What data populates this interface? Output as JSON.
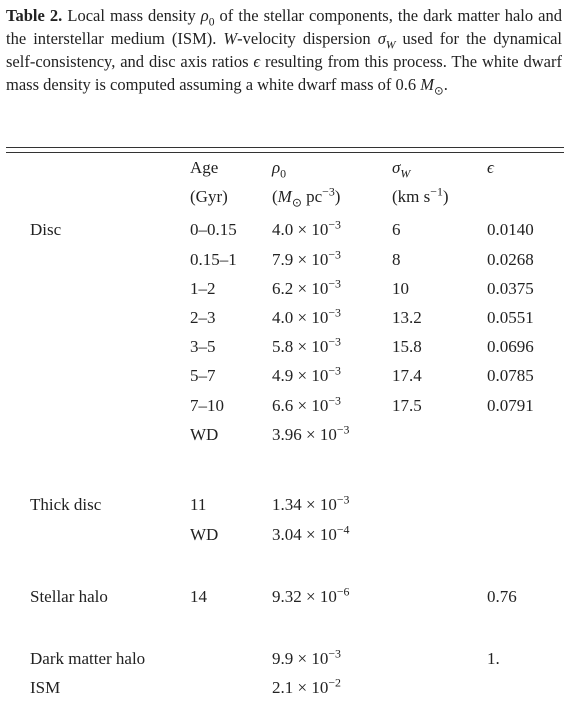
{
  "caption": {
    "label": "Table 2.",
    "segments": [
      "Local mass density ",
      "ρ",
      "0",
      " of the stellar components, the dark matter halo and the interstellar medium (ISM). ",
      "W",
      "-velocity dispersion ",
      "σ",
      "W",
      " used for the dynamical self-consistency, and disc axis ratios ",
      "ϵ",
      " resulting from this process. The white dwarf mass density is computed assuming a white dwarf mass of 0.6 ",
      "M",
      "⊙",
      "."
    ]
  },
  "table": {
    "header": {
      "age": [
        "Age",
        "(Gyr)"
      ],
      "rho": {
        "symbol": "ρ",
        "sub": "0",
        "unit_open": "(",
        "unit_m": "M",
        "unit_sun": "⊙",
        "unit_pc": " pc",
        "unit_exp": "−3",
        "unit_close": ")"
      },
      "sigma": {
        "symbol": "σ",
        "sub": "W",
        "unit": "(km s",
        "unit_exp": "−1",
        "unit_close": ")"
      },
      "eps": "ϵ"
    },
    "rows": [
      {
        "group": "Disc",
        "age": "0–0.15",
        "rho": {
          "base": "4.0 × 10",
          "exp": "−3"
        },
        "sigma": "6",
        "eps": "0.0140"
      },
      {
        "group": null,
        "age": "0.15–1",
        "rho": {
          "base": "7.9 × 10",
          "exp": "−3"
        },
        "sigma": "8",
        "eps": "0.0268"
      },
      {
        "group": null,
        "age": "1–2",
        "rho": {
          "base": "6.2 × 10",
          "exp": "−3"
        },
        "sigma": "10",
        "eps": "0.0375"
      },
      {
        "group": null,
        "age": "2–3",
        "rho": {
          "base": "4.0 × 10",
          "exp": "−3"
        },
        "sigma": "13.2",
        "eps": "0.0551"
      },
      {
        "group": null,
        "age": "3–5",
        "rho": {
          "base": "5.8 × 10",
          "exp": "−3"
        },
        "sigma": "15.8",
        "eps": "0.0696"
      },
      {
        "group": null,
        "age": "5–7",
        "rho": {
          "base": "4.9 × 10",
          "exp": "−3"
        },
        "sigma": "17.4",
        "eps": "0.0785"
      },
      {
        "group": null,
        "age": "7–10",
        "rho": {
          "base": "6.6 × 10",
          "exp": "−3"
        },
        "sigma": "17.5",
        "eps": "0.0791"
      },
      {
        "group": null,
        "age": "WD",
        "rho": {
          "base": "3.96 × 10",
          "exp": "−3"
        },
        "sigma": null,
        "eps": null
      },
      {
        "group": "Thick disc",
        "age": "11",
        "rho": {
          "base": "1.34 × 10",
          "exp": "−3"
        },
        "sigma": null,
        "eps": null
      },
      {
        "group": null,
        "age": "WD",
        "rho": {
          "base": "3.04 × 10",
          "exp": "−4"
        },
        "sigma": null,
        "eps": null
      },
      {
        "group": "Stellar halo",
        "age": "14",
        "rho": {
          "base": "9.32 × 10",
          "exp": "−6"
        },
        "sigma": null,
        "eps": "0.76"
      },
      {
        "group": "Dark matter halo",
        "age": null,
        "rho": {
          "base": "9.9 × 10",
          "exp": "−3"
        },
        "sigma": null,
        "eps": "1."
      },
      {
        "group": "ISM",
        "age": null,
        "rho": {
          "base": "2.1 × 10",
          "exp": "−2"
        },
        "sigma": null,
        "eps": null
      }
    ]
  }
}
